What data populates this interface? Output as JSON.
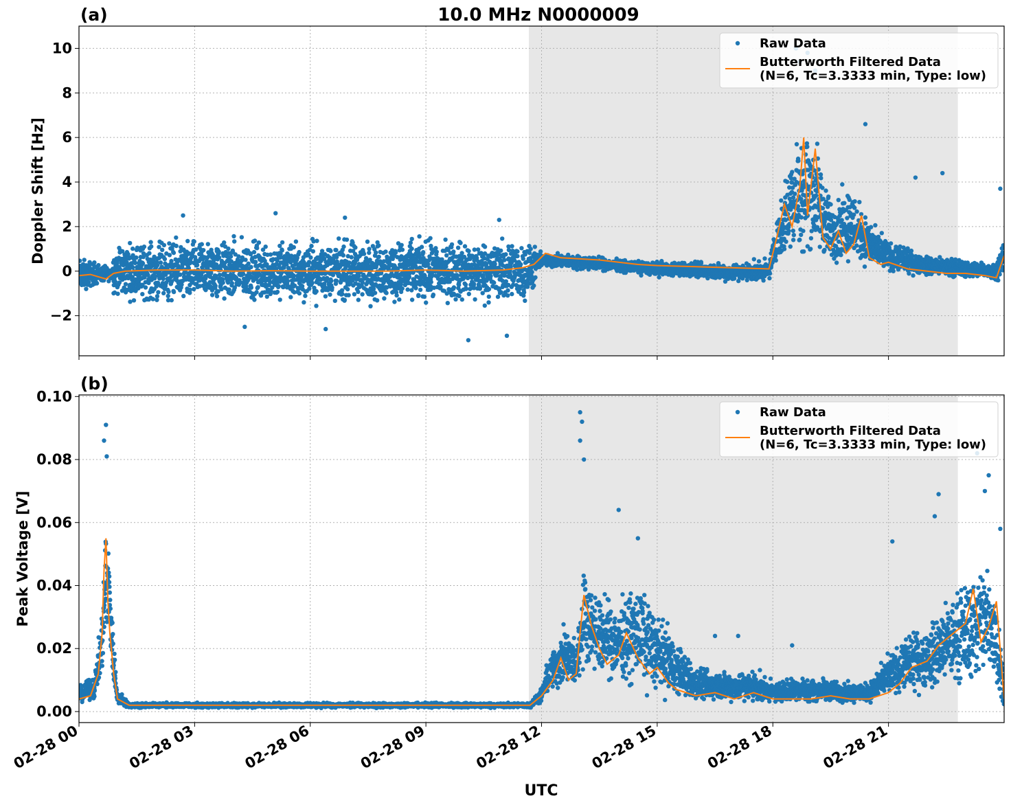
{
  "figure": {
    "title": "10.0 MHz N0000009",
    "xlabel": "UTC"
  },
  "chart_data": [
    {
      "panel_label": "(a)",
      "type": "scatter",
      "title": "10.0 MHz N0000009",
      "ylabel": "Doppler Shift [Hz]",
      "xlabel": "",
      "xlim_hours": [
        0,
        24
      ],
      "ylim": [
        -3.8,
        11.0
      ],
      "yticks": [
        -2,
        0,
        2,
        4,
        6,
        8,
        10
      ],
      "ytick_labels": [
        "−2",
        "0",
        "2",
        "4",
        "6",
        "8",
        "10"
      ],
      "grid": true,
      "legend": "top-right",
      "shaded_region_hours": [
        11.67,
        22.8
      ],
      "series": [
        {
          "name": "Raw Data",
          "kind": "scatter",
          "color": "#1f77b4",
          "envelope_hours": [
            0,
            0.4,
            0.8,
            0.9,
            1,
            2,
            3,
            4,
            5,
            6,
            7,
            8,
            9,
            10,
            11,
            11.7,
            12,
            13,
            14,
            15,
            16,
            17,
            17.9,
            18,
            18.5,
            19,
            19.5,
            20,
            20.5,
            21,
            22,
            23,
            23.8,
            24
          ],
          "upper": [
            0.8,
            0.6,
            0.2,
            1.2,
            1.6,
            1.7,
            1.8,
            1.8,
            1.8,
            1.8,
            1.8,
            1.8,
            1.8,
            1.8,
            1.8,
            1.6,
            0.9,
            0.8,
            0.6,
            0.5,
            0.5,
            0.5,
            0.6,
            1.5,
            6.5,
            7.5,
            3.5,
            4.5,
            2.5,
            1.5,
            0.8,
            0.6,
            0.5,
            1.8
          ],
          "lower": [
            -1.2,
            -0.8,
            -0.5,
            -1.2,
            -1.5,
            -1.8,
            -1.8,
            -1.8,
            -1.8,
            -1.8,
            -1.8,
            -1.8,
            -1.8,
            -1.8,
            -1.8,
            -1.6,
            0.1,
            0.0,
            -0.1,
            -0.3,
            -0.4,
            -0.6,
            -0.6,
            0.2,
            0.1,
            0.0,
            0.0,
            0.0,
            -0.1,
            -0.2,
            -0.3,
            -0.4,
            -0.5,
            -0.3
          ],
          "outliers": [
            [
              2.7,
              2.5
            ],
            [
              5.1,
              2.6
            ],
            [
              6.9,
              2.4
            ],
            [
              10.9,
              2.3
            ],
            [
              10.1,
              -3.1
            ],
            [
              11.1,
              -2.9
            ],
            [
              4.3,
              -2.5
            ],
            [
              6.4,
              -2.6
            ],
            [
              18.6,
              10.0
            ],
            [
              18.9,
              9.8
            ],
            [
              18.7,
              9.4
            ],
            [
              19.1,
              9.0
            ],
            [
              20.4,
              6.6
            ],
            [
              21.7,
              4.2
            ],
            [
              22.4,
              4.4
            ],
            [
              23.9,
              3.7
            ]
          ]
        },
        {
          "name": "Butterworth Filtered Data\n(N=6, Tc=3.3333 min, Type: low)",
          "kind": "line",
          "color": "#ff7f0e",
          "x_hours": [
            0,
            0.3,
            0.5,
            0.7,
            0.9,
            1.2,
            2,
            3,
            4,
            5,
            6,
            7,
            8,
            9,
            10,
            11,
            11.5,
            11.8,
            12.1,
            12.5,
            13,
            13.5,
            14,
            14.5,
            15,
            16,
            17,
            17.9,
            18.1,
            18.3,
            18.5,
            18.7,
            18.8,
            18.9,
            19.1,
            19.3,
            19.5,
            19.7,
            19.9,
            20.1,
            20.3,
            20.5,
            20.8,
            21,
            21.5,
            22,
            22.5,
            23,
            23.5,
            23.8,
            24
          ],
          "y": [
            -0.2,
            -0.15,
            -0.25,
            -0.35,
            -0.1,
            0.0,
            0.05,
            0.05,
            0.0,
            0.02,
            0.0,
            0.0,
            0.0,
            0.05,
            0.0,
            0.05,
            0.15,
            0.3,
            0.8,
            0.6,
            0.55,
            0.5,
            0.4,
            0.3,
            0.25,
            0.2,
            0.15,
            0.1,
            1.5,
            3.0,
            2.0,
            3.8,
            6.0,
            2.5,
            5.5,
            1.5,
            1.0,
            1.8,
            0.8,
            1.2,
            2.5,
            0.6,
            0.3,
            0.4,
            0.1,
            0.0,
            -0.1,
            -0.1,
            -0.2,
            -0.3,
            0.7
          ]
        }
      ]
    },
    {
      "panel_label": "(b)",
      "type": "scatter",
      "title": "",
      "ylabel": "Peak Voltage [V]",
      "xlabel": "UTC",
      "xlim_hours": [
        0,
        24
      ],
      "ylim": [
        -0.0035,
        0.1005
      ],
      "yticks": [
        0.0,
        0.02,
        0.04,
        0.06,
        0.08,
        0.1
      ],
      "ytick_labels": [
        "0.00",
        "0.02",
        "0.04",
        "0.06",
        "0.08",
        "0.10"
      ],
      "xtick_hours": [
        0,
        3,
        6,
        9,
        12,
        15,
        18,
        21
      ],
      "xtick_labels": [
        "02-28 00",
        "02-28 03",
        "02-28 06",
        "02-28 09",
        "02-28 12",
        "02-28 15",
        "02-28 18",
        "02-28 21"
      ],
      "grid": true,
      "legend": "top-right",
      "shaded_region_hours": [
        11.67,
        22.8
      ],
      "series": [
        {
          "name": "Raw Data",
          "kind": "scatter",
          "color": "#1f77b4",
          "envelope_hours": [
            0,
            0.4,
            0.6,
            0.7,
            0.8,
            0.9,
            1.0,
            1.3,
            2,
            4,
            6,
            8,
            10,
            11.7,
            12.0,
            12.2,
            12.6,
            12.9,
            13.1,
            13.5,
            14,
            14.5,
            15,
            15.5,
            16,
            17,
            17.5,
            18,
            18.5,
            19,
            20,
            20.5,
            21,
            21.5,
            22,
            22.5,
            23,
            23.5,
            23.8,
            24
          ],
          "upper": [
            0.009,
            0.012,
            0.035,
            0.07,
            0.055,
            0.025,
            0.008,
            0.003,
            0.003,
            0.003,
            0.003,
            0.003,
            0.003,
            0.003,
            0.008,
            0.02,
            0.03,
            0.025,
            0.05,
            0.04,
            0.038,
            0.045,
            0.035,
            0.025,
            0.015,
            0.014,
            0.015,
            0.01,
            0.012,
            0.012,
            0.01,
            0.01,
            0.02,
            0.026,
            0.03,
            0.038,
            0.045,
            0.055,
            0.045,
            0.012
          ],
          "lower": [
            0.002,
            0.003,
            0.01,
            0.02,
            0.015,
            0.004,
            0.001,
            0.001,
            0.001,
            0.001,
            0.001,
            0.001,
            0.001,
            0.001,
            0.002,
            0.004,
            0.005,
            0.004,
            0.012,
            0.008,
            0.006,
            0.005,
            0.003,
            0.002,
            0.002,
            0.002,
            0.001,
            0.002,
            0.002,
            0.002,
            0.002,
            0.002,
            0.003,
            0.004,
            0.004,
            0.005,
            0.005,
            0.004,
            0.002,
            0.002
          ],
          "outliers": [
            [
              0.7,
              0.091
            ],
            [
              0.65,
              0.086
            ],
            [
              0.72,
              0.081
            ],
            [
              13.0,
              0.095
            ],
            [
              13.05,
              0.092
            ],
            [
              13.0,
              0.086
            ],
            [
              13.1,
              0.08
            ],
            [
              14.0,
              0.064
            ],
            [
              14.5,
              0.055
            ],
            [
              16.5,
              0.024
            ],
            [
              17.1,
              0.024
            ],
            [
              18.5,
              0.021
            ],
            [
              21.1,
              0.054
            ],
            [
              22.3,
              0.069
            ],
            [
              22.2,
              0.062
            ],
            [
              23.3,
              0.082
            ],
            [
              23.6,
              0.075
            ],
            [
              23.5,
              0.07
            ],
            [
              23.9,
              0.058
            ]
          ]
        },
        {
          "name": "Butterworth Filtered Data\n(N=6, Tc=3.3333 min, Type: low)",
          "kind": "line",
          "color": "#ff7f0e",
          "x_hours": [
            0,
            0.3,
            0.5,
            0.6,
            0.65,
            0.7,
            0.75,
            0.8,
            0.9,
            1.0,
            1.3,
            2,
            4,
            6,
            8,
            10,
            11.7,
            12.0,
            12.3,
            12.5,
            12.7,
            12.9,
            13.0,
            13.1,
            13.3,
            13.5,
            13.7,
            14.0,
            14.2,
            14.5,
            14.8,
            15.0,
            15.3,
            15.5,
            16,
            16.5,
            17,
            17.5,
            18,
            18.5,
            19,
            19.5,
            20,
            20.5,
            21,
            21.3,
            21.6,
            22,
            22.3,
            22.6,
            23,
            23.2,
            23.4,
            23.6,
            23.8,
            24
          ],
          "y": [
            0.004,
            0.005,
            0.012,
            0.025,
            0.045,
            0.055,
            0.035,
            0.025,
            0.012,
            0.004,
            0.002,
            0.002,
            0.002,
            0.002,
            0.002,
            0.002,
            0.002,
            0.005,
            0.01,
            0.017,
            0.01,
            0.012,
            0.025,
            0.037,
            0.027,
            0.02,
            0.015,
            0.018,
            0.025,
            0.017,
            0.012,
            0.014,
            0.009,
            0.007,
            0.005,
            0.006,
            0.004,
            0.006,
            0.004,
            0.004,
            0.004,
            0.005,
            0.004,
            0.004,
            0.006,
            0.009,
            0.014,
            0.016,
            0.021,
            0.024,
            0.028,
            0.039,
            0.022,
            0.027,
            0.035,
            0.004
          ]
        }
      ]
    }
  ],
  "colors": {
    "raw": "#1f77b4",
    "filtered": "#ff7f0e",
    "shade": "#e7e7e7",
    "grid": "#b0b0b0"
  }
}
